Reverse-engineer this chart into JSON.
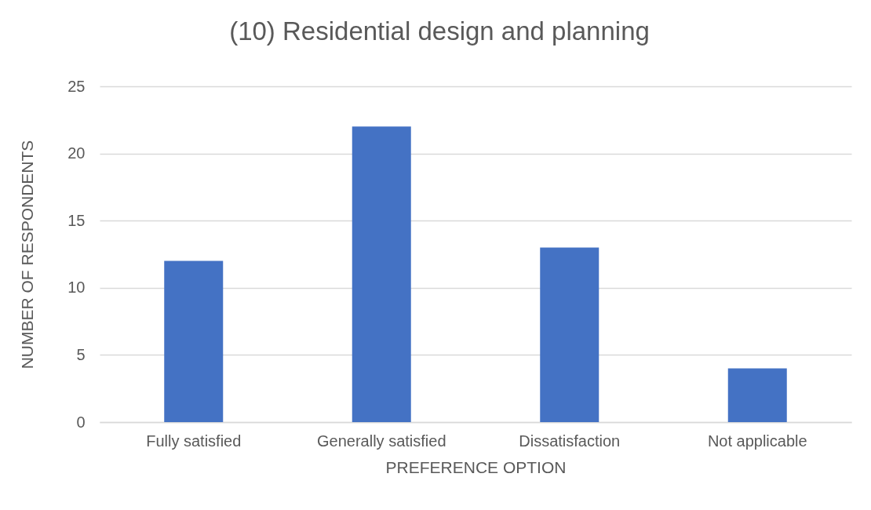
{
  "chart_data": {
    "type": "bar",
    "title": "(10) Residential design and planning",
    "xlabel": "PREFERENCE OPTION",
    "ylabel": "NUMBER OF RESPONDENTS",
    "categories": [
      "Fully satisfied",
      "Generally satisfied",
      "Dissatisfaction",
      "Not applicable"
    ],
    "values": [
      12,
      22,
      13,
      4
    ],
    "color": "#4472c4",
    "ylim": [
      0,
      25
    ],
    "yticks": [
      0,
      5,
      10,
      15,
      20,
      25
    ],
    "grid": "y"
  }
}
